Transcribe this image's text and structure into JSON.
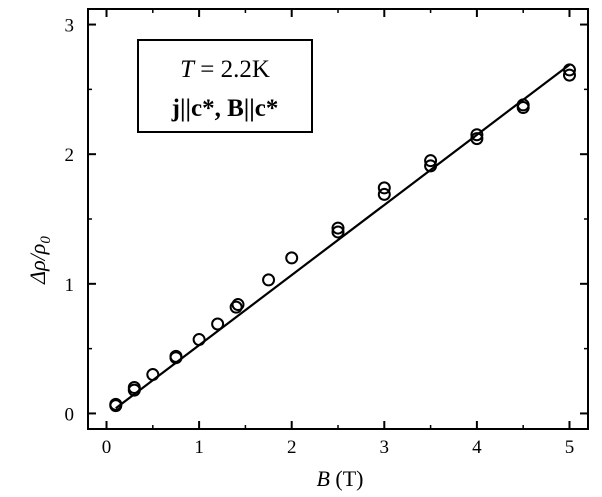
{
  "chart_data": {
    "type": "scatter",
    "xlabel_symbol": "B",
    "xlabel_unit": " (T)",
    "ylabel": "Δρ/ρ",
    "ylabel_subscript": "0",
    "xlim": [
      -0.2,
      5.2
    ],
    "ylim": [
      -0.12,
      3.12
    ],
    "x_ticks": [
      0,
      1,
      2,
      3,
      4,
      5
    ],
    "x_tick_labels": [
      "0",
      "1",
      "2",
      "3",
      "4",
      "5"
    ],
    "y_ticks": [
      0,
      1,
      2,
      3
    ],
    "y_tick_labels": [
      "0",
      "1",
      "2",
      "3"
    ],
    "grid": false,
    "legend_position": "top-left",
    "annotation": {
      "line1_italic": "T",
      "line1_rest": " = 2.2K",
      "line2": "j||c*, B||c*"
    },
    "series": [
      {
        "marker": "open-circle",
        "x": [
          0.1,
          0.1,
          0.3,
          0.3,
          0.5,
          0.75,
          0.75,
          1.0,
          1.2,
          1.4,
          1.42,
          1.75,
          2.0,
          2.5,
          2.5,
          3.0,
          3.0,
          3.5,
          3.5,
          4.0,
          4.0,
          4.5,
          4.5,
          5.0,
          5.0
        ],
        "y": [
          0.06,
          0.07,
          0.18,
          0.2,
          0.3,
          0.43,
          0.44,
          0.57,
          0.69,
          0.82,
          0.84,
          1.03,
          1.2,
          1.4,
          1.43,
          1.69,
          1.74,
          1.91,
          1.95,
          2.12,
          2.15,
          2.36,
          2.38,
          2.61,
          2.65
        ]
      }
    ],
    "fit_line": {
      "x": [
        0.1,
        5.0
      ],
      "y": [
        0.04,
        2.69
      ]
    }
  }
}
